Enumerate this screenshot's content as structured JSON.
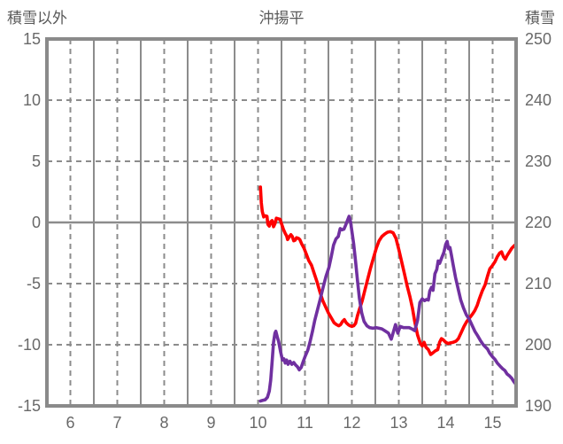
{
  "header": {
    "left_axis_title": "積雪以外",
    "chart_title": "沖揚平",
    "right_axis_title": "積雪"
  },
  "colors": {
    "frame": "#8a8a8a",
    "grid": "#8c8c8c",
    "header_text": "#595959",
    "tick_text": "#696969",
    "series_red": "#ff0000",
    "series_purple": "#7030a0",
    "background": "#ffffff"
  },
  "chart_data": {
    "type": "line",
    "title": "沖揚平",
    "x_axis": {
      "range": [
        5.5,
        15.5
      ],
      "ticks": [
        6,
        7,
        8,
        9,
        10,
        11,
        12,
        13,
        14,
        15
      ],
      "dashed_gridlines": [
        6,
        7,
        8,
        9,
        10,
        11,
        12,
        13,
        14,
        15
      ],
      "solid_gridlines": [
        6.5,
        7.5,
        8.5,
        9.5,
        10.5,
        11.5,
        12.5,
        13.5,
        14.5
      ]
    },
    "left_axis": {
      "title": "積雪以外",
      "range": [
        -15,
        15
      ],
      "ticks": [
        15,
        10,
        5,
        0,
        -5,
        -10,
        -15
      ],
      "dashed_gridlines": [
        10,
        5,
        -5,
        -10
      ],
      "solid_gridlines": [
        0
      ]
    },
    "right_axis": {
      "title": "積雪",
      "range": [
        190,
        250
      ],
      "ticks": [
        250,
        240,
        230,
        220,
        210,
        200,
        190
      ]
    },
    "grid": true,
    "legend": "none",
    "series": [
      {
        "name": "積雪以外",
        "axis": "left",
        "color": "#ff0000",
        "points": [
          [
            10.05,
            2.9
          ],
          [
            10.07,
            1.6
          ],
          [
            10.09,
            0.9
          ],
          [
            10.12,
            0.45
          ],
          [
            10.15,
            0.55
          ],
          [
            10.19,
            0.5
          ],
          [
            10.21,
            -0.15
          ],
          [
            10.24,
            -0.3
          ],
          [
            10.27,
            0.05
          ],
          [
            10.3,
            0.15
          ],
          [
            10.33,
            -0.35
          ],
          [
            10.36,
            -0.1
          ],
          [
            10.39,
            0.35
          ],
          [
            10.43,
            0.3
          ],
          [
            10.47,
            0.25
          ],
          [
            10.5,
            -0.1
          ],
          [
            10.54,
            -0.55
          ],
          [
            10.58,
            -0.9
          ],
          [
            10.61,
            -1.1
          ],
          [
            10.63,
            -1.4
          ],
          [
            10.67,
            -1.15
          ],
          [
            10.7,
            -1.0
          ],
          [
            10.73,
            -1.15
          ],
          [
            10.76,
            -1.5
          ],
          [
            10.79,
            -1.45
          ],
          [
            10.82,
            -1.25
          ],
          [
            10.86,
            -1.3
          ],
          [
            10.89,
            -1.4
          ],
          [
            10.93,
            -1.75
          ],
          [
            10.98,
            -2.1
          ],
          [
            11.03,
            -2.6
          ],
          [
            11.08,
            -3.1
          ],
          [
            11.14,
            -3.5
          ],
          [
            11.2,
            -4.2
          ],
          [
            11.26,
            -4.9
          ],
          [
            11.32,
            -5.7
          ],
          [
            11.38,
            -6.4
          ],
          [
            11.44,
            -6.9
          ],
          [
            11.5,
            -7.4
          ],
          [
            11.56,
            -7.8
          ],
          [
            11.62,
            -8.2
          ],
          [
            11.67,
            -8.35
          ],
          [
            11.72,
            -8.45
          ],
          [
            11.76,
            -8.35
          ],
          [
            11.8,
            -8.1
          ],
          [
            11.84,
            -7.95
          ],
          [
            11.88,
            -8.2
          ],
          [
            11.92,
            -8.35
          ],
          [
            11.96,
            -8.45
          ],
          [
            12.0,
            -8.5
          ],
          [
            12.04,
            -8.45
          ],
          [
            12.08,
            -8.25
          ],
          [
            12.12,
            -7.6
          ],
          [
            12.17,
            -7.0
          ],
          [
            12.22,
            -6.4
          ],
          [
            12.28,
            -5.5
          ],
          [
            12.34,
            -4.6
          ],
          [
            12.4,
            -3.7
          ],
          [
            12.46,
            -2.9
          ],
          [
            12.52,
            -2.1
          ],
          [
            12.58,
            -1.5
          ],
          [
            12.64,
            -1.15
          ],
          [
            12.7,
            -0.95
          ],
          [
            12.76,
            -0.8
          ],
          [
            12.82,
            -0.75
          ],
          [
            12.88,
            -0.85
          ],
          [
            12.94,
            -1.3
          ],
          [
            13.0,
            -2.2
          ],
          [
            13.06,
            -3.2
          ],
          [
            13.12,
            -4.2
          ],
          [
            13.18,
            -5.2
          ],
          [
            13.24,
            -6.1
          ],
          [
            13.29,
            -7.0
          ],
          [
            13.34,
            -8.1
          ],
          [
            13.4,
            -9.2
          ],
          [
            13.46,
            -9.9
          ],
          [
            13.5,
            -10.1
          ],
          [
            13.54,
            -9.8
          ],
          [
            13.58,
            -10.2
          ],
          [
            13.63,
            -10.4
          ],
          [
            13.68,
            -10.8
          ],
          [
            13.73,
            -10.65
          ],
          [
            13.78,
            -10.5
          ],
          [
            13.83,
            -10.4
          ],
          [
            13.87,
            -9.8
          ],
          [
            13.91,
            -9.5
          ],
          [
            13.95,
            -9.6
          ],
          [
            14.0,
            -9.8
          ],
          [
            14.05,
            -9.9
          ],
          [
            14.1,
            -9.85
          ],
          [
            14.16,
            -9.8
          ],
          [
            14.22,
            -9.7
          ],
          [
            14.27,
            -9.5
          ],
          [
            14.33,
            -9.0
          ],
          [
            14.39,
            -8.5
          ],
          [
            14.45,
            -8.1
          ],
          [
            14.51,
            -7.8
          ],
          [
            14.57,
            -7.5
          ],
          [
            14.62,
            -7.2
          ],
          [
            14.67,
            -6.8
          ],
          [
            14.72,
            -6.2
          ],
          [
            14.78,
            -5.6
          ],
          [
            14.84,
            -5.1
          ],
          [
            14.89,
            -4.4
          ],
          [
            14.94,
            -3.8
          ],
          [
            15.0,
            -3.5
          ],
          [
            15.05,
            -3.2
          ],
          [
            15.1,
            -2.8
          ],
          [
            15.15,
            -2.5
          ],
          [
            15.19,
            -2.4
          ],
          [
            15.23,
            -2.8
          ],
          [
            15.27,
            -3.0
          ],
          [
            15.31,
            -2.7
          ],
          [
            15.36,
            -2.4
          ],
          [
            15.41,
            -2.1
          ],
          [
            15.45,
            -1.95
          ],
          [
            15.48,
            -1.85
          ]
        ]
      },
      {
        "name": "積雪",
        "axis": "right",
        "color": "#7030a0",
        "points": [
          [
            10.05,
            190.8
          ],
          [
            10.1,
            190.9
          ],
          [
            10.15,
            191.0
          ],
          [
            10.2,
            191.4
          ],
          [
            10.24,
            192.4
          ],
          [
            10.27,
            194.2
          ],
          [
            10.3,
            197.2
          ],
          [
            10.33,
            200.4
          ],
          [
            10.36,
            201.9
          ],
          [
            10.38,
            202.2
          ],
          [
            10.41,
            201.3
          ],
          [
            10.44,
            200.5
          ],
          [
            10.48,
            198.9
          ],
          [
            10.52,
            197.5
          ],
          [
            10.55,
            197.7
          ],
          [
            10.58,
            197.0
          ],
          [
            10.61,
            197.5
          ],
          [
            10.64,
            196.8
          ],
          [
            10.68,
            197.3
          ],
          [
            10.72,
            196.8
          ],
          [
            10.76,
            197.1
          ],
          [
            10.8,
            196.7
          ],
          [
            10.84,
            196.4
          ],
          [
            10.88,
            195.9
          ],
          [
            10.92,
            196.3
          ],
          [
            10.96,
            197.2
          ],
          [
            11.01,
            198.2
          ],
          [
            11.06,
            199.1
          ],
          [
            11.11,
            200.5
          ],
          [
            11.16,
            202.2
          ],
          [
            11.21,
            204.0
          ],
          [
            11.27,
            205.8
          ],
          [
            11.33,
            207.6
          ],
          [
            11.39,
            209.5
          ],
          [
            11.45,
            211.2
          ],
          [
            11.51,
            212.6
          ],
          [
            11.56,
            214.4
          ],
          [
            11.61,
            216.3
          ],
          [
            11.66,
            217.3
          ],
          [
            11.71,
            217.7
          ],
          [
            11.75,
            219.0
          ],
          [
            11.79,
            218.8
          ],
          [
            11.83,
            218.9
          ],
          [
            11.87,
            219.6
          ],
          [
            11.91,
            220.4
          ],
          [
            11.94,
            221.0
          ],
          [
            11.97,
            220.2
          ],
          [
            12.0,
            218.6
          ],
          [
            12.04,
            216.4
          ],
          [
            12.08,
            213.6
          ],
          [
            12.12,
            210.4
          ],
          [
            12.16,
            207.6
          ],
          [
            12.21,
            205.2
          ],
          [
            12.26,
            203.8
          ],
          [
            12.32,
            203.1
          ],
          [
            12.38,
            202.8
          ],
          [
            12.45,
            202.7
          ],
          [
            12.52,
            202.8
          ],
          [
            12.58,
            202.7
          ],
          [
            12.64,
            202.6
          ],
          [
            12.7,
            202.3
          ],
          [
            12.78,
            201.9
          ],
          [
            12.84,
            200.9
          ],
          [
            12.93,
            203.3
          ],
          [
            12.98,
            201.9
          ],
          [
            13.03,
            203.0
          ],
          [
            13.1,
            202.8
          ],
          [
            13.16,
            202.8
          ],
          [
            13.22,
            202.8
          ],
          [
            13.28,
            202.6
          ],
          [
            13.34,
            202.3
          ],
          [
            13.4,
            204.0
          ],
          [
            13.45,
            206.9
          ],
          [
            13.5,
            207.5
          ],
          [
            13.55,
            207.2
          ],
          [
            13.59,
            207.4
          ],
          [
            13.63,
            207.3
          ],
          [
            13.66,
            208.8
          ],
          [
            13.7,
            209.4
          ],
          [
            13.73,
            208.9
          ],
          [
            13.77,
            211.6
          ],
          [
            13.81,
            212.3
          ],
          [
            13.84,
            213.7
          ],
          [
            13.87,
            213.3
          ],
          [
            13.91,
            214.1
          ],
          [
            13.96,
            215.1
          ],
          [
            14.0,
            216.4
          ],
          [
            14.03,
            216.9
          ],
          [
            14.06,
            215.7
          ],
          [
            14.09,
            215.9
          ],
          [
            14.12,
            214.7
          ],
          [
            14.16,
            213.0
          ],
          [
            14.21,
            211.0
          ],
          [
            14.26,
            209.3
          ],
          [
            14.32,
            207.3
          ],
          [
            14.38,
            206.0
          ],
          [
            14.44,
            204.9
          ],
          [
            14.5,
            204.2
          ],
          [
            14.56,
            203.2
          ],
          [
            14.62,
            202.2
          ],
          [
            14.68,
            201.5
          ],
          [
            14.74,
            200.7
          ],
          [
            14.79,
            200.1
          ],
          [
            14.84,
            199.7
          ],
          [
            14.89,
            199.3
          ],
          [
            14.94,
            198.6
          ],
          [
            15.0,
            198.0
          ],
          [
            15.05,
            197.6
          ],
          [
            15.1,
            197.0
          ],
          [
            15.16,
            196.5
          ],
          [
            15.21,
            196.1
          ],
          [
            15.26,
            195.8
          ],
          [
            15.31,
            195.2
          ],
          [
            15.36,
            194.9
          ],
          [
            15.41,
            194.5
          ],
          [
            15.45,
            194.0
          ],
          [
            15.48,
            193.7
          ]
        ]
      }
    ]
  },
  "layout_hints": {
    "grid_style": "solid verticals at half-hours, dashed verticals at hours, dashed horizontals at ticks, solid zero line"
  }
}
